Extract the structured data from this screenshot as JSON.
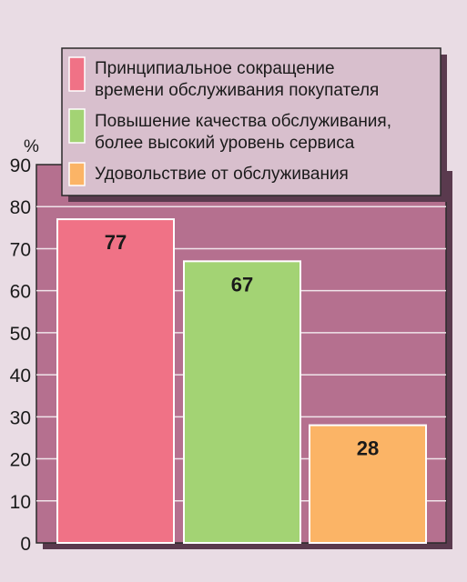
{
  "colors": {
    "page_background": "#e9dce4",
    "plot_background": "#b5708f",
    "plot_shadow": "#5a3a4e",
    "gridline": "#f0e4ea",
    "legend_background": "#d8bfcd",
    "bar_colors": [
      "#f07286",
      "#a3d374",
      "#fbb466"
    ]
  },
  "chart_data": {
    "type": "bar",
    "title": "",
    "xlabel": "",
    "ylabel": "%",
    "ylim": [
      0,
      90
    ],
    "yticks": [
      0,
      10,
      20,
      30,
      40,
      50,
      60,
      70,
      80,
      90
    ],
    "grid": true,
    "legend_position": "top-right",
    "categories": [
      "Принципиальное сокращение времени обслуживания покупателя",
      "Повышение качества обслуживания, более высокий уровень сервиса",
      "Удовольствие от обслуживания"
    ],
    "legend_lines": [
      [
        "Принципиальное сокращение",
        "времени обслуживания покупателя"
      ],
      [
        "Повышение качества обслуживания,",
        "более высокий уровень сервиса"
      ],
      [
        "Удовольствие от обслуживания"
      ]
    ],
    "values": [
      77,
      67,
      28
    ],
    "value_labels": [
      "77",
      "67",
      "28"
    ]
  }
}
